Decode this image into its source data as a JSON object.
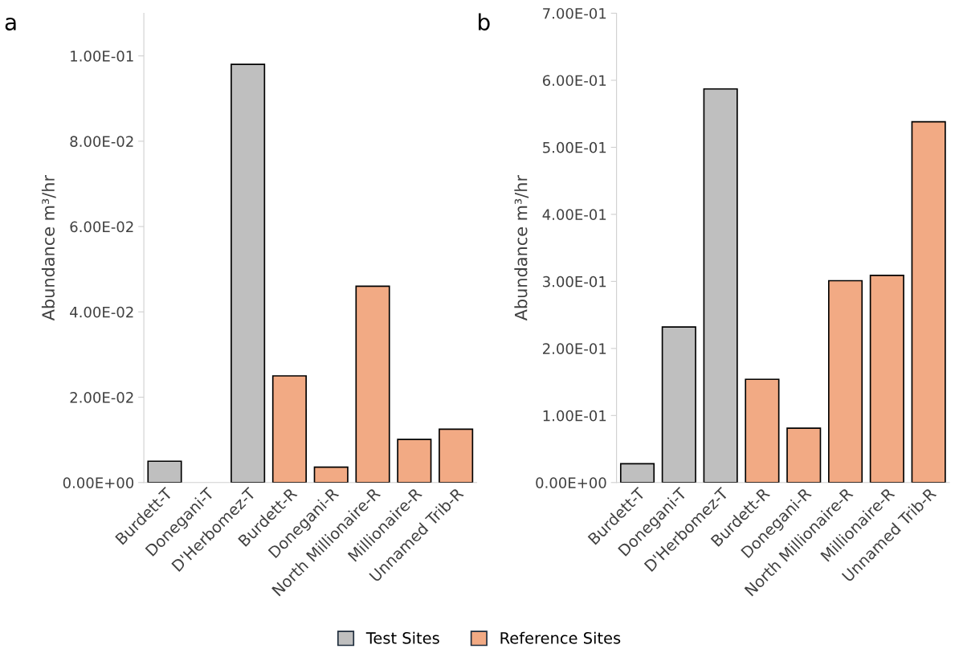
{
  "chart_data": [
    {
      "type": "bar",
      "title": "a",
      "ylabel": "Abundance m³/hr",
      "categories": [
        "Burdett-T",
        "Donegani-T",
        "D'Herbomez-T",
        "Burdett-R",
        "Donegani-R",
        "North Millionaire-R",
        "Millionaire-R",
        "Unnamed Trib-R"
      ],
      "series": [
        {
          "name": "Test Sites",
          "color": "#bfbfbf",
          "values": [
            0.005,
            null,
            0.098,
            null,
            null,
            null,
            null,
            null
          ]
        },
        {
          "name": "Reference Sites",
          "color": "#f2aa84",
          "values": [
            null,
            null,
            null,
            0.025,
            0.0036,
            0.046,
            0.0101,
            0.0125
          ]
        }
      ],
      "ylim": [
        0,
        0.11
      ],
      "yticks": [
        {
          "value": 0,
          "label": "0.00E+00"
        },
        {
          "value": 0.02,
          "label": "2.00E-02"
        },
        {
          "value": 0.04,
          "label": "4.00E-02"
        },
        {
          "value": 0.06,
          "label": "6.00E-02"
        },
        {
          "value": 0.08,
          "label": "8.00E-02"
        },
        {
          "value": 0.1,
          "label": "1.00E-01"
        }
      ],
      "grid": false,
      "legend": "bottom"
    },
    {
      "type": "bar",
      "title": "b",
      "ylabel": "Abundance m³/hr",
      "categories": [
        "Burdett-T",
        "Donegani-T",
        "D'Herbomez-T",
        "Burdett-R",
        "Donegani-R",
        "North Millionaire-R",
        "Millionaire-R",
        "Unnamed Trib-R"
      ],
      "series": [
        {
          "name": "Test Sites",
          "color": "#bfbfbf",
          "values": [
            0.028,
            0.232,
            0.587,
            null,
            null,
            null,
            null,
            null
          ]
        },
        {
          "name": "Reference Sites",
          "color": "#f2aa84",
          "values": [
            null,
            null,
            null,
            0.154,
            0.081,
            0.301,
            0.309,
            0.538
          ]
        }
      ],
      "ylim": [
        0,
        0.7
      ],
      "yticks": [
        {
          "value": 0,
          "label": "0.00E+00"
        },
        {
          "value": 0.1,
          "label": "1.00E-01"
        },
        {
          "value": 0.2,
          "label": "2.00E-01"
        },
        {
          "value": 0.3,
          "label": "3.00E-01"
        },
        {
          "value": 0.4,
          "label": "4.00E-01"
        },
        {
          "value": 0.5,
          "label": "5.00E-01"
        },
        {
          "value": 0.6,
          "label": "6.00E-01"
        },
        {
          "value": 0.7,
          "label": "7.00E-01"
        }
      ],
      "grid": false,
      "legend": "bottom"
    }
  ]
}
